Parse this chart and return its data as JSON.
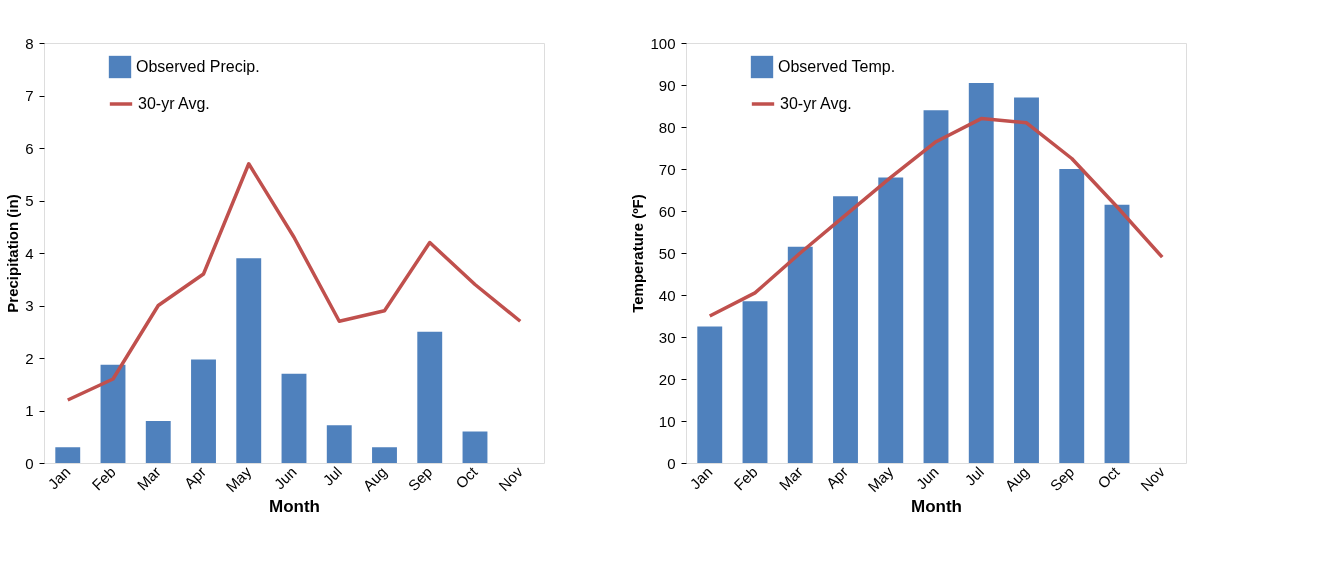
{
  "chart_data": [
    {
      "type": "bar",
      "xlabel": "Month",
      "ylabel": "Precipitation (in)",
      "categories": [
        "Jan",
        "Feb",
        "Mar",
        "Apr",
        "May",
        "Jun",
        "Jul",
        "Aug",
        "Sep",
        "Oct",
        "Nov"
      ],
      "ylim": [
        0,
        8
      ],
      "yticks": [
        0,
        1,
        2,
        3,
        4,
        5,
        6,
        7,
        8
      ],
      "grid": false,
      "legend": "top left",
      "marker": "none",
      "series": [
        {
          "name": "Observed Precip.",
          "color": "#4f81bd",
          "values": [
            0.3,
            1.87,
            0.8,
            1.97,
            3.9,
            1.7,
            0.72,
            0.3,
            2.5,
            0.6,
            null
          ]
        },
        {
          "name": "30-yr Avg.",
          "type": "line",
          "color": "#c0504d",
          "values": [
            1.2,
            1.6,
            3.0,
            3.6,
            5.7,
            4.3,
            2.7,
            2.9,
            4.2,
            3.4,
            2.7
          ]
        }
      ]
    },
    {
      "type": "bar",
      "xlabel": "Month",
      "ylabel": "Temperature (ºF)",
      "categories": [
        "Jan",
        "Feb",
        "Mar",
        "Apr",
        "May",
        "Jun",
        "Jul",
        "Aug",
        "Sep",
        "Oct",
        "Nov"
      ],
      "ylim": [
        0,
        100
      ],
      "yticks": [
        0,
        10,
        20,
        30,
        40,
        50,
        60,
        70,
        80,
        90,
        100
      ],
      "grid": false,
      "legend": "top left",
      "marker": "none",
      "series": [
        {
          "name": "Observed Temp.",
          "color": "#4f81bd",
          "values": [
            32.5,
            38.5,
            51.5,
            63.5,
            68,
            84,
            90.5,
            87,
            70,
            61.5,
            null
          ]
        },
        {
          "name": "30-yr Avg.",
          "type": "line",
          "color": "#c0504d",
          "values": [
            35,
            40.5,
            50,
            59,
            68,
            76.5,
            82,
            81,
            72.5,
            61,
            49
          ]
        }
      ]
    }
  ]
}
